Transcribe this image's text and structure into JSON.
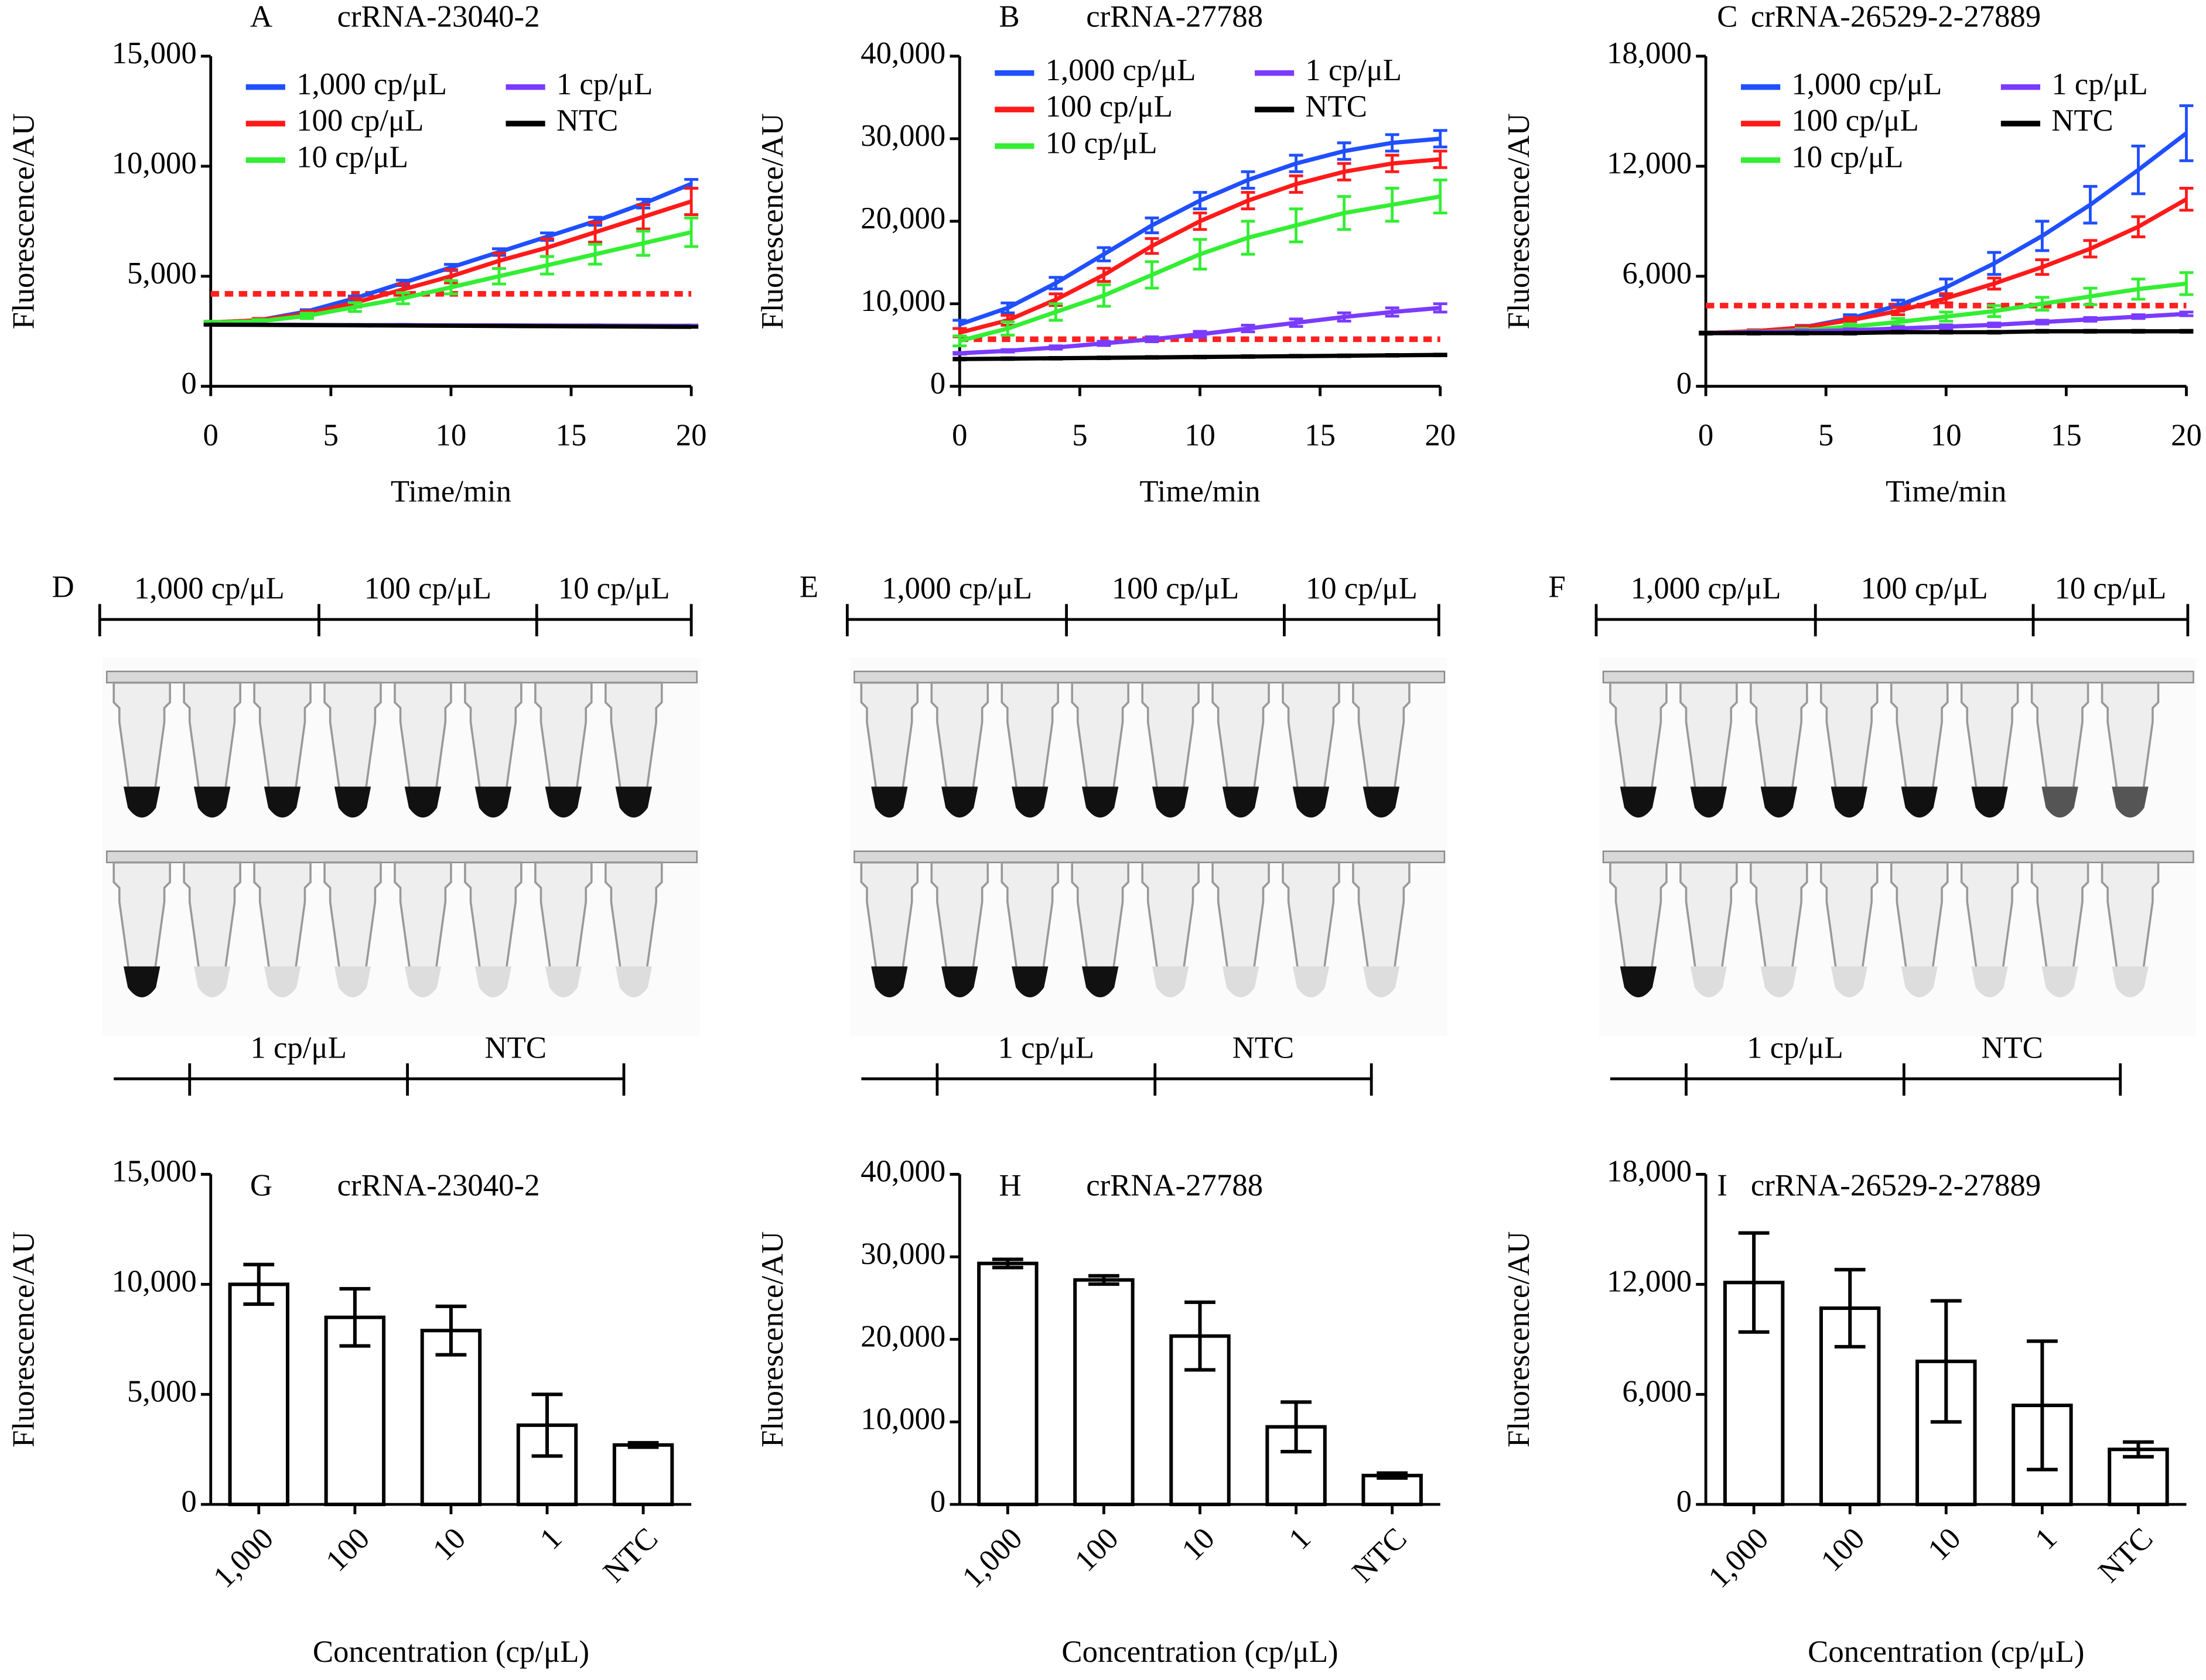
{
  "chart_data": [
    {
      "type": "line",
      "panel": "A",
      "title": "crRNA-23040-2",
      "xlabel": "Time/min",
      "ylabel": "Fluorescence/AU",
      "xlim": [
        0,
        20
      ],
      "xticks": [
        0,
        5,
        10,
        15,
        20
      ],
      "ylim": [
        0,
        15000
      ],
      "yticks": [
        0,
        {
          "value": 5000,
          "label": "5,000"
        },
        {
          "value": 10000,
          "label": "10,000"
        },
        {
          "value": 15000,
          "label": "15,000"
        }
      ],
      "threshold": 4200,
      "threshold_color": "#ff2020",
      "legend": "upper-left",
      "x": [
        0,
        2,
        4,
        6,
        8,
        10,
        12,
        14,
        16,
        18,
        20
      ],
      "series": [
        {
          "name": "1,000 cp/μL",
          "color": "#1f4fff",
          "values": [
            2900,
            3000,
            3400,
            4000,
            4700,
            5400,
            6100,
            6800,
            7500,
            8300,
            9200
          ],
          "errors": [
            50,
            60,
            80,
            100,
            120,
            140,
            150,
            170,
            180,
            200,
            200
          ]
        },
        {
          "name": "100 cp/μL",
          "color": "#ff1a1a",
          "values": [
            2900,
            3000,
            3300,
            3800,
            4400,
            5000,
            5700,
            6300,
            7000,
            7700,
            8400
          ],
          "errors": [
            50,
            80,
            120,
            200,
            250,
            300,
            350,
            400,
            450,
            550,
            600
          ]
        },
        {
          "name": "10 cp/μL",
          "color": "#33ee33",
          "values": [
            2900,
            2950,
            3200,
            3600,
            4000,
            4500,
            5000,
            5500,
            6000,
            6500,
            7000
          ],
          "errors": [
            50,
            80,
            120,
            200,
            250,
            300,
            350,
            400,
            450,
            550,
            650
          ]
        },
        {
          "name": "1 cp/μL",
          "color": "#7a3bff",
          "values": [
            2800,
            2800,
            2790,
            2780,
            2780,
            2770,
            2770,
            2760,
            2760,
            2750,
            2750
          ],
          "errors": [
            30,
            30,
            30,
            30,
            30,
            30,
            30,
            30,
            30,
            30,
            30
          ]
        },
        {
          "name": "NTC",
          "color": "#000000",
          "values": [
            2800,
            2790,
            2780,
            2770,
            2760,
            2750,
            2740,
            2730,
            2720,
            2710,
            2700
          ],
          "errors": [
            20,
            20,
            20,
            20,
            20,
            20,
            20,
            20,
            20,
            20,
            20
          ]
        }
      ]
    },
    {
      "type": "line",
      "panel": "B",
      "title": "crRNA-27788",
      "xlabel": "Time/min",
      "ylabel": "Fluorescence/AU",
      "xlim": [
        0,
        20
      ],
      "xticks": [
        0,
        5,
        10,
        15,
        20
      ],
      "ylim": [
        0,
        40000
      ],
      "yticks": [
        0,
        {
          "value": 10000,
          "label": "10,000"
        },
        {
          "value": 20000,
          "label": "20,000"
        },
        {
          "value": 30000,
          "label": "30,000"
        },
        {
          "value": 40000,
          "label": "40,000"
        }
      ],
      "threshold": 5700,
      "threshold_color": "#ff2020",
      "legend": "upper-left",
      "x": [
        0,
        2,
        4,
        6,
        8,
        10,
        12,
        14,
        16,
        18,
        20
      ],
      "series": [
        {
          "name": "1,000 cp/μL",
          "color": "#1f4fff",
          "values": [
            7500,
            9500,
            12500,
            16000,
            19500,
            22500,
            25000,
            27000,
            28500,
            29500,
            30000
          ],
          "errors": [
            500,
            600,
            700,
            800,
            900,
            1000,
            1000,
            1000,
            1000,
            1000,
            1000
          ]
        },
        {
          "name": "100 cp/μL",
          "color": "#ff1a1a",
          "values": [
            6500,
            8000,
            10500,
            13500,
            17000,
            20000,
            22500,
            24500,
            26000,
            27000,
            27500
          ],
          "errors": [
            500,
            600,
            700,
            800,
            900,
            1000,
            1000,
            1000,
            1000,
            1000,
            1000
          ]
        },
        {
          "name": "10 cp/μL",
          "color": "#33ee33",
          "values": [
            5500,
            7000,
            9000,
            11000,
            13500,
            16000,
            18000,
            19500,
            21000,
            22000,
            23000
          ],
          "errors": [
            600,
            800,
            1000,
            1300,
            1600,
            1800,
            2000,
            2000,
            2000,
            2000,
            2000
          ]
        },
        {
          "name": "1 cp/μL",
          "color": "#7a3bff",
          "values": [
            4000,
            4300,
            4700,
            5200,
            5700,
            6300,
            7000,
            7700,
            8400,
            9000,
            9500
          ],
          "errors": [
            100,
            150,
            200,
            250,
            300,
            350,
            400,
            450,
            500,
            500,
            500
          ]
        },
        {
          "name": "NTC",
          "color": "#000000",
          "values": [
            3300,
            3350,
            3400,
            3450,
            3500,
            3550,
            3600,
            3650,
            3700,
            3750,
            3800
          ],
          "errors": [
            100,
            100,
            100,
            100,
            100,
            100,
            100,
            100,
            100,
            100,
            100
          ]
        }
      ]
    },
    {
      "type": "line",
      "panel": "C",
      "title": "crRNA-26529-2-27889",
      "xlabel": "Time/min",
      "ylabel": "Fluorescence/AU",
      "xlim": [
        0,
        20
      ],
      "xticks": [
        0,
        5,
        10,
        15,
        20
      ],
      "ylim": [
        0,
        18000
      ],
      "yticks": [
        0,
        {
          "value": 6000,
          "label": "6,000"
        },
        {
          "value": 12000,
          "label": "12,000"
        },
        {
          "value": 18000,
          "label": "18,000"
        }
      ],
      "threshold": 4400,
      "threshold_color": "#ff2020",
      "legend": "upper-left",
      "x": [
        0,
        2,
        4,
        6,
        8,
        10,
        12,
        14,
        16,
        18,
        20
      ],
      "series": [
        {
          "name": "1,000 cp/μL",
          "color": "#1f4fff",
          "values": [
            2900,
            3000,
            3200,
            3700,
            4400,
            5400,
            6700,
            8200,
            9900,
            11800,
            13800
          ],
          "errors": [
            50,
            80,
            120,
            200,
            300,
            450,
            600,
            800,
            1000,
            1300,
            1500
          ]
        },
        {
          "name": "100 cp/μL",
          "color": "#ff1a1a",
          "values": [
            2900,
            3000,
            3200,
            3600,
            4100,
            4800,
            5600,
            6500,
            7500,
            8700,
            10200
          ],
          "errors": [
            50,
            80,
            100,
            150,
            200,
            250,
            300,
            400,
            450,
            550,
            600
          ]
        },
        {
          "name": "10 cp/μL",
          "color": "#33ee33",
          "values": [
            2900,
            2950,
            3050,
            3250,
            3500,
            3800,
            4100,
            4500,
            4900,
            5300,
            5600
          ],
          "errors": [
            50,
            80,
            100,
            150,
            200,
            250,
            300,
            350,
            450,
            550,
            600
          ]
        },
        {
          "name": "1 cp/μL",
          "color": "#7a3bff",
          "values": [
            2900,
            2950,
            3000,
            3050,
            3150,
            3250,
            3350,
            3500,
            3650,
            3800,
            3950
          ],
          "errors": [
            50,
            60,
            70,
            80,
            90,
            100,
            100,
            100,
            100,
            100,
            100
          ]
        },
        {
          "name": "NTC",
          "color": "#000000",
          "values": [
            2900,
            2900,
            2900,
            2900,
            2950,
            2950,
            2950,
            3000,
            3000,
            3000,
            3000
          ],
          "errors": [
            50,
            50,
            50,
            50,
            50,
            50,
            50,
            50,
            50,
            50,
            50
          ]
        }
      ]
    },
    {
      "type": "bar",
      "panel": "G",
      "title": "crRNA-23040-2",
      "xlabel": "Concentration (cp/μL)",
      "ylabel": "Fluorescence/AU",
      "ylim": [
        0,
        15000
      ],
      "yticks": [
        0,
        {
          "value": 5000,
          "label": "5,000"
        },
        {
          "value": 10000,
          "label": "10,000"
        },
        {
          "value": 15000,
          "label": "15,000"
        }
      ],
      "categories": [
        "1,000",
        "100",
        "10",
        "1",
        "NTC"
      ],
      "values": [
        10000,
        8500,
        7900,
        3600,
        2700
      ],
      "errors": [
        900,
        1300,
        1100,
        1400,
        100
      ],
      "color": "#ffffff"
    },
    {
      "type": "bar",
      "panel": "H",
      "title": "crRNA-27788",
      "xlabel": "Concentration (cp/μL)",
      "ylabel": "Fluorescence/AU",
      "ylim": [
        0,
        40000
      ],
      "yticks": [
        0,
        {
          "value": 10000,
          "label": "10,000"
        },
        {
          "value": 20000,
          "label": "20,000"
        },
        {
          "value": 30000,
          "label": "30,000"
        },
        {
          "value": 40000,
          "label": "40,000"
        }
      ],
      "categories": [
        "1,000",
        "100",
        "10",
        "1",
        "NTC"
      ],
      "values": [
        29200,
        27200,
        20400,
        9400,
        3500
      ],
      "errors": [
        500,
        500,
        4100,
        3000,
        300
      ],
      "color": "#ffffff"
    },
    {
      "type": "bar",
      "panel": "I",
      "title": "crRNA-26529-2-27889",
      "xlabel": "Concentration (cp/μL)",
      "ylabel": "Fluorescence/AU",
      "ylim": [
        0,
        18000
      ],
      "yticks": [
        0,
        {
          "value": 6000,
          "label": "6,000"
        },
        {
          "value": 12000,
          "label": "12,000"
        },
        {
          "value": 18000,
          "label": "18,000"
        }
      ],
      "categories": [
        "1,000",
        "100",
        "10",
        "1",
        "NTC"
      ],
      "values": [
        12100,
        10700,
        7800,
        5400,
        3000
      ],
      "errors": [
        2700,
        2100,
        3300,
        3500,
        400
      ],
      "color": "#ffffff"
    }
  ],
  "photos": [
    {
      "panel": "D",
      "top_labels": [
        "1,000 cp/μL",
        "100 cp/μL",
        "10 cp/μL"
      ],
      "bottom_labels": [
        "1 cp/μL",
        "NTC"
      ]
    },
    {
      "panel": "E",
      "top_labels": [
        "1,000 cp/μL",
        "100 cp/μL",
        "10 cp/μL"
      ],
      "bottom_labels": [
        "1 cp/μL",
        "NTC"
      ]
    },
    {
      "panel": "F",
      "top_labels": [
        "1,000 cp/μL",
        "100 cp/μL",
        "10 cp/μL"
      ],
      "bottom_labels": [
        "1 cp/μL",
        "NTC"
      ]
    }
  ]
}
